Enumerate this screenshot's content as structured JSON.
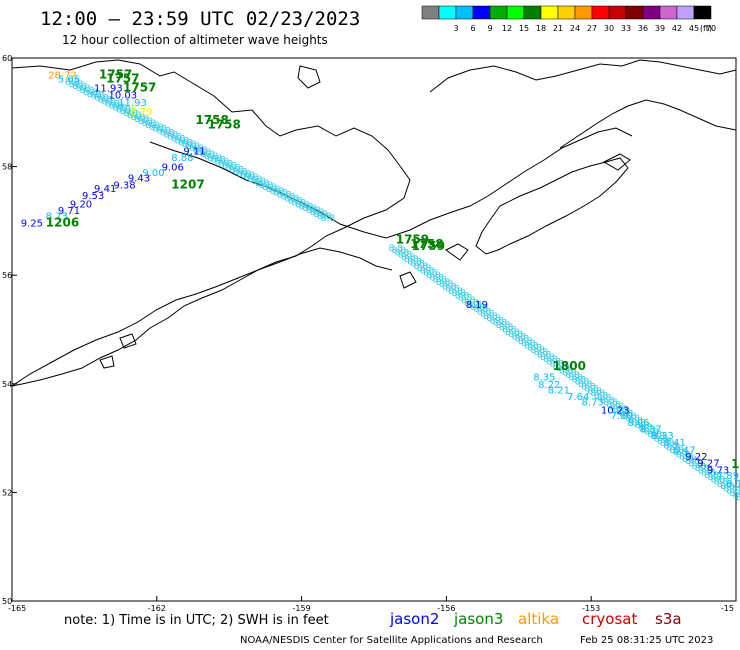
{
  "header": {
    "title": "12:00 – 23:59 UTC 02/23/2023",
    "subtitle": "12 hour collection of altimeter wave heights"
  },
  "colorbar": {
    "unit": "(ft)",
    "swatches": [
      {
        "color": "#808080",
        "label": ""
      },
      {
        "color": "#00ffff",
        "label": "3"
      },
      {
        "color": "#00bfff",
        "label": "6"
      },
      {
        "color": "#0000ff",
        "label": "9"
      },
      {
        "color": "#00b000",
        "label": "12"
      },
      {
        "color": "#00ff00",
        "label": "15"
      },
      {
        "color": "#008000",
        "label": "18"
      },
      {
        "color": "#ffff00",
        "label": "21"
      },
      {
        "color": "#ffd000",
        "label": "24"
      },
      {
        "color": "#ff9900",
        "label": "27"
      },
      {
        "color": "#ff0000",
        "label": "30"
      },
      {
        "color": "#c80000",
        "label": "33"
      },
      {
        "color": "#800000",
        "label": "36"
      },
      {
        "color": "#800080",
        "label": "39"
      },
      {
        "color": "#cc66cc",
        "label": "42"
      },
      {
        "color": "#c0a0ff",
        "label": "45"
      },
      {
        "color": "#000000",
        "label": "70"
      }
    ]
  },
  "axes": {
    "lat_ticks": [
      "60",
      "58",
      "56",
      "54",
      "52",
      "50"
    ],
    "lon_ticks": [
      "-165",
      "-162",
      "-159",
      "-156",
      "-153",
      "-15"
    ]
  },
  "labels": [
    {
      "text": "28.72",
      "color": "#ff9900",
      "lon": -164.25,
      "lat": 59.62
    },
    {
      "text": "1757",
      "color": "#008000",
      "lon": -163.2,
      "lat": 59.62,
      "bold": true
    },
    {
      "text": "1757",
      "color": "#008000",
      "lon": -163.05,
      "lat": 59.55,
      "bold": true
    },
    {
      "text": "5.65",
      "color": "#00bfff",
      "lon": -164.05,
      "lat": 59.55
    },
    {
      "text": "1757",
      "color": "#008000",
      "lon": -162.7,
      "lat": 59.38,
      "bold": true
    },
    {
      "text": "11.93",
      "color": "#0000ff",
      "lon": -163.3,
      "lat": 59.38
    },
    {
      "text": "10.03",
      "color": "#0000ff",
      "lon": -163.0,
      "lat": 59.25
    },
    {
      "text": "11.93",
      "color": "#00bfff",
      "lon": -162.8,
      "lat": 59.12
    },
    {
      "text": "6.79",
      "color": "#ffff00",
      "lon": -162.55,
      "lat": 58.95
    },
    {
      "text": "1758",
      "color": "#008000",
      "lon": -161.2,
      "lat": 58.78,
      "bold": true
    },
    {
      "text": "1758",
      "color": "#008000",
      "lon": -160.95,
      "lat": 58.7,
      "bold": true
    },
    {
      "text": "9.11",
      "color": "#0000ff",
      "lon": -161.45,
      "lat": 58.22
    },
    {
      "text": "8.88",
      "color": "#00bfff",
      "lon": -161.7,
      "lat": 58.1
    },
    {
      "text": "9.06",
      "color": "#0000ff",
      "lon": -161.9,
      "lat": 57.93
    },
    {
      "text": "9.00",
      "color": "#00bfff",
      "lon": -162.3,
      "lat": 57.83
    },
    {
      "text": "9.43",
      "color": "#0000ff",
      "lon": -162.6,
      "lat": 57.73
    },
    {
      "text": "9.38",
      "color": "#0000ff",
      "lon": -162.9,
      "lat": 57.6
    },
    {
      "text": "1207",
      "color": "#008000",
      "lon": -161.7,
      "lat": 57.6,
      "bold": true
    },
    {
      "text": "9.41",
      "color": "#0000ff",
      "lon": -163.3,
      "lat": 57.53
    },
    {
      "text": "9.53",
      "color": "#0000ff",
      "lon": -163.55,
      "lat": 57.4
    },
    {
      "text": "9.20",
      "color": "#0000ff",
      "lon": -163.8,
      "lat": 57.25
    },
    {
      "text": "9.71",
      "color": "#0000ff",
      "lon": -164.05,
      "lat": 57.13
    },
    {
      "text": "8.73",
      "color": "#00bfff",
      "lon": -164.3,
      "lat": 57.03
    },
    {
      "text": "9.25",
      "color": "#0000ff",
      "lon": -164.82,
      "lat": 56.9
    },
    {
      "text": "1206",
      "color": "#008000",
      "lon": -164.3,
      "lat": 56.9,
      "bold": true
    },
    {
      "text": "1759",
      "color": "#008000",
      "lon": -157.05,
      "lat": 56.58,
      "bold": true
    },
    {
      "text": "1758",
      "color": "#008000",
      "lon": -156.75,
      "lat": 56.5,
      "bold": true
    },
    {
      "text": "1759",
      "color": "#008000",
      "lon": -156.72,
      "lat": 56.46,
      "bold": true
    },
    {
      "text": "8.19",
      "color": "#0000ff",
      "lon": -155.6,
      "lat": 55.4
    },
    {
      "text": "1800",
      "color": "#008000",
      "lon": -153.8,
      "lat": 54.25,
      "bold": true
    },
    {
      "text": "8.35",
      "color": "#00bfff",
      "lon": -154.2,
      "lat": 54.06
    },
    {
      "text": "8.22",
      "color": "#00bfff",
      "lon": -154.1,
      "lat": 53.92
    },
    {
      "text": "8.21",
      "color": "#00bfff",
      "lon": -153.9,
      "lat": 53.82
    },
    {
      "text": "7.64",
      "color": "#00bfff",
      "lon": -153.5,
      "lat": 53.7
    },
    {
      "text": "8.73",
      "color": "#00bfff",
      "lon": -153.2,
      "lat": 53.6
    },
    {
      "text": "10.23",
      "color": "#0000ff",
      "lon": -152.8,
      "lat": 53.45
    },
    {
      "text": "7.80",
      "color": "#00bfff",
      "lon": -152.6,
      "lat": 53.35
    },
    {
      "text": "8.06",
      "color": "#00bfff",
      "lon": -152.25,
      "lat": 53.22
    },
    {
      "text": "8.37",
      "color": "#00bfff",
      "lon": -152.0,
      "lat": 53.1
    },
    {
      "text": "8.33",
      "color": "#00bfff",
      "lon": -151.75,
      "lat": 52.98
    },
    {
      "text": "8.41",
      "color": "#00bfff",
      "lon": -151.5,
      "lat": 52.85
    },
    {
      "text": "8.47",
      "color": "#00bfff",
      "lon": -151.3,
      "lat": 52.72
    },
    {
      "text": "9.22",
      "color": "#0000ff",
      "lon": -151.05,
      "lat": 52.6
    },
    {
      "text": "9.27",
      "color": "#0000ff",
      "lon": -150.8,
      "lat": 52.48
    },
    {
      "text": "9.73",
      "color": "#0000ff",
      "lon": -150.6,
      "lat": 52.35
    },
    {
      "text": "7.89",
      "color": "#00bfff",
      "lon": -150.4,
      "lat": 52.25
    },
    {
      "text": "8.10",
      "color": "#00bfff",
      "lon": -150.2,
      "lat": 52.1
    },
    {
      "text": "1",
      "color": "#008000",
      "lon": -150.1,
      "lat": 52.45,
      "bold": true
    }
  ],
  "footer": {
    "note": "note: 1) Time is in UTC; 2) SWH is in feet",
    "satellites": [
      {
        "name": "jason2",
        "color": "#0000ff"
      },
      {
        "name": "jason3",
        "color": "#008000"
      },
      {
        "name": "altika",
        "color": "#ff9900"
      },
      {
        "name": "cryosat",
        "color": "#c80000"
      },
      {
        "name": "s3a",
        "color": "#800000"
      }
    ],
    "credit": "NOAA/NESDIS Center for Satellite Applications and Research",
    "timestamp": "Feb 25 08:31:25 UTC 2023"
  }
}
